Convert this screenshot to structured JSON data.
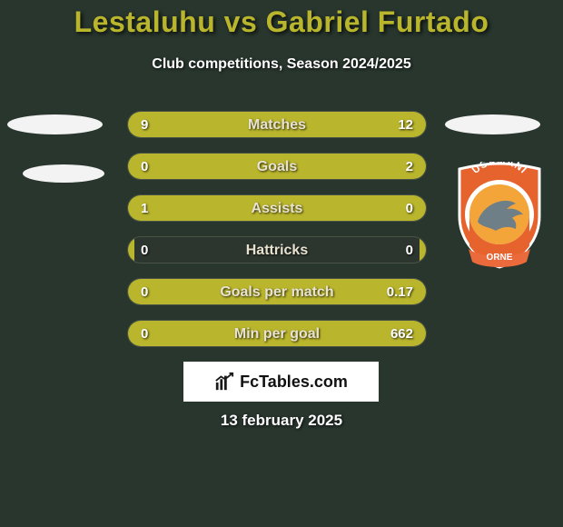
{
  "bg": {
    "color": "#28362e"
  },
  "title": {
    "text": "Lestaluhu vs Gabriel Furtado",
    "color": "#b9b52c",
    "fontsize": 32
  },
  "subtitle": {
    "text": "Club competitions, Season 2024/2025",
    "color": "#ffffff",
    "fontsize": 16
  },
  "avatars": {
    "left1_bg": "#f3f3f3",
    "left2_bg": "#f3f3f3",
    "right1_bg": "#f3f3f3"
  },
  "emblem": {
    "outer_color": "#e7632e",
    "ring_color": "#ffffff",
    "inner_top": "#f3a53a",
    "inner_bottom": "#e7632e",
    "dolphin_color": "#6f7f88",
    "ribbon_color": "#ea6a3b",
    "text_top": "USAMANI",
    "text_bottom": "ORNE",
    "text_color": "#ffffff"
  },
  "stats": {
    "bar_empty_color": "#2d362e",
    "bar_empty_border": "#4a5446",
    "left_bar_color": "#b9b52c",
    "right_bar_color": "#b9b52c",
    "label_color": "#e8e2d0",
    "value_color": "#ffffff",
    "rows": [
      {
        "label": "Matches",
        "left": "9",
        "right": "12",
        "left_pct": 42,
        "right_pct": 58
      },
      {
        "label": "Goals",
        "left": "0",
        "right": "2",
        "left_pct": 2,
        "right_pct": 98
      },
      {
        "label": "Assists",
        "left": "1",
        "right": "0",
        "left_pct": 98,
        "right_pct": 2
      },
      {
        "label": "Hattricks",
        "left": "0",
        "right": "0",
        "left_pct": 2,
        "right_pct": 2
      },
      {
        "label": "Goals per match",
        "left": "0",
        "right": "0.17",
        "left_pct": 2,
        "right_pct": 98
      },
      {
        "label": "Min per goal",
        "left": "0",
        "right": "662",
        "left_pct": 2,
        "right_pct": 98
      }
    ]
  },
  "branding": {
    "text": "FcTables.com",
    "bg": "#ffffff",
    "text_color": "#111111",
    "icon_color": "#1a1a1a"
  },
  "date": {
    "text": "13 february 2025",
    "color": "#ffffff"
  }
}
